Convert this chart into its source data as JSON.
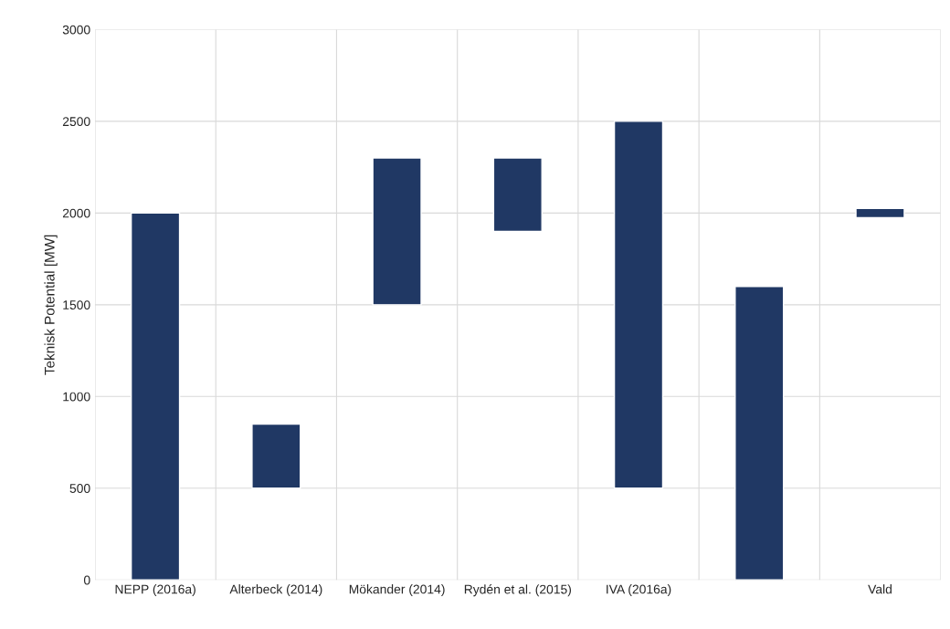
{
  "chart_data": {
    "type": "bar",
    "ylabel": "Teknisk Potential [MW]",
    "categories": [
      "NEPP (2016a)",
      "Alterbeck (2014)",
      "Mökander (2014)",
      "Rydén et al. (2015)",
      "IVA (2016a)",
      null,
      "Vald"
    ],
    "base": [
      0,
      500,
      1500,
      1900,
      500,
      0,
      1975
    ],
    "values": [
      2000,
      350,
      800,
      400,
      2000,
      1600,
      50
    ],
    "color": "#203864",
    "ylim": [
      0,
      3000
    ],
    "yticks": [
      0,
      500,
      1000,
      1500,
      2000,
      2500,
      3000
    ],
    "grid": true
  }
}
